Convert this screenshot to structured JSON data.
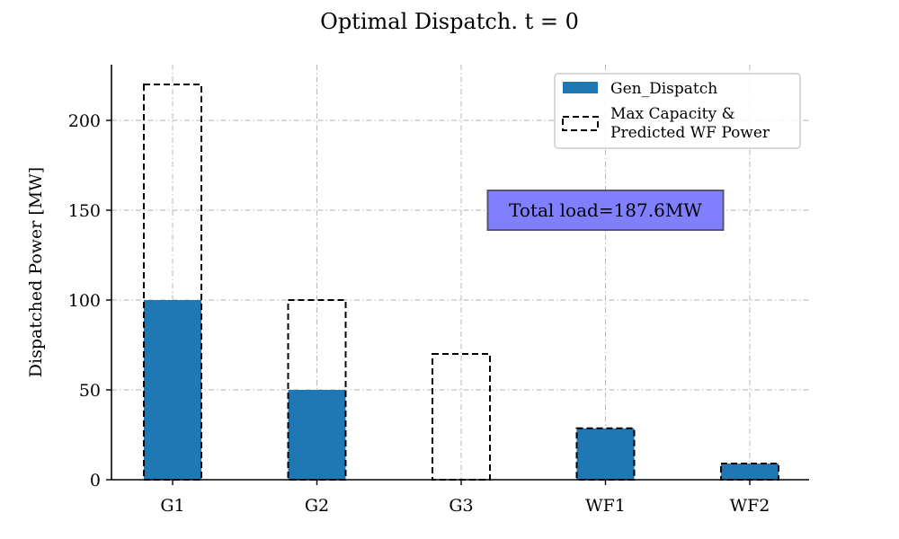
{
  "chart_data": {
    "type": "bar",
    "title": "Optimal Dispatch. t = 0",
    "xlabel": "",
    "ylabel": "Dispatched Power [MW]",
    "categories": [
      "G1",
      "G2",
      "G3",
      "WF1",
      "WF2"
    ],
    "ylim": [
      0,
      231
    ],
    "yticks": [
      0,
      50,
      100,
      150,
      200
    ],
    "grid": true,
    "legend_position": "top-right",
    "series": [
      {
        "name": "Gen_Dispatch",
        "style": "filled",
        "color": "#1f77b4",
        "values": [
          100,
          50,
          0,
          28.6,
          9
        ]
      },
      {
        "name": "Max Capacity & Predicted WF Power",
        "legend_lines": [
          "Max Capacity &",
          "Predicted WF Power"
        ],
        "style": "dashed-outline",
        "color": "#000000",
        "values": [
          220,
          100,
          70,
          28.6,
          9
        ]
      }
    ],
    "annotation": {
      "text": "Total load=187.6MW",
      "x": "WF1",
      "y": 150,
      "color": "#8080ff"
    }
  }
}
